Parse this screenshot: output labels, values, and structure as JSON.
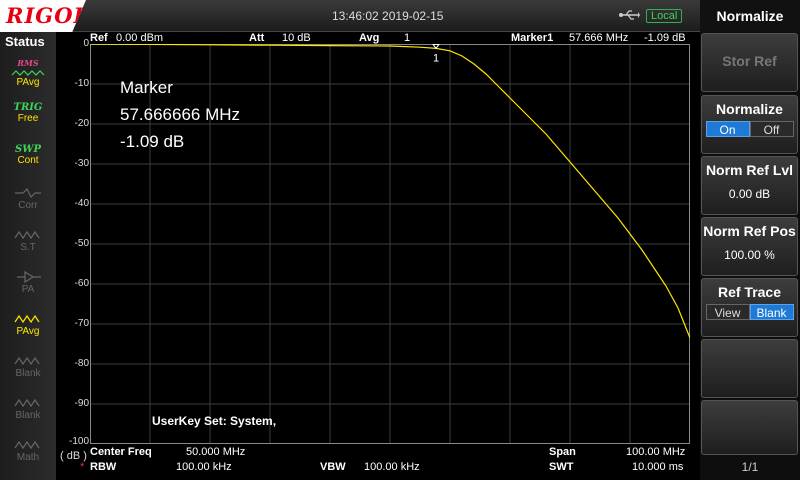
{
  "topbar": {
    "brand": "RIGOL",
    "datetime": "13:46:02 2019-02-15",
    "remote_status": "Local"
  },
  "status_panel": {
    "title": "Status",
    "items": [
      {
        "icon": "power-avg-icon",
        "top": "RMS",
        "label": "PAvg",
        "active": true
      },
      {
        "icon": "trigger-icon",
        "top": "TRIG",
        "label": "Free",
        "active": true
      },
      {
        "icon": "sweep-icon",
        "top": "SWP",
        "label": "Cont",
        "active": true
      },
      {
        "icon": "corr-icon",
        "label": "Corr",
        "active": false
      },
      {
        "icon": "st-icon",
        "label": "S.T",
        "active": false
      },
      {
        "icon": "pa-icon",
        "label": "PA",
        "active": false
      },
      {
        "icon": "trace-pavg-icon",
        "label": "PAvg",
        "active": true
      },
      {
        "icon": "trace-blank-icon",
        "label": "Blank",
        "active": false
      },
      {
        "icon": "trace-blank-icon",
        "label": "Blank",
        "active": false
      },
      {
        "icon": "trace-math-icon",
        "label": "Math",
        "active": false
      }
    ]
  },
  "plot_header": {
    "ref_label": "Ref",
    "ref_value": "0.00 dBm",
    "att_label": "Att",
    "att_value": "10 dB",
    "avg_label": "Avg",
    "avg_value": "1",
    "marker_label": "Marker1",
    "marker_freq": "57.666 MHz",
    "marker_level": "-1.09 dB"
  },
  "marker_box": {
    "title": "Marker",
    "freq": "57.666666 MHz",
    "level": "-1.09 dB"
  },
  "marker_id": "1",
  "userkey_text": "UserKey Set:   System,",
  "y_ticks": [
    "0",
    "-10",
    "-20",
    "-30",
    "-40",
    "-50",
    "-60",
    "-70",
    "-80",
    "-90",
    "-100"
  ],
  "unit": "( dB )",
  "bottom": {
    "center_label": "Center Freq",
    "center_value": "50.000 MHz",
    "span_label": "Span",
    "span_value": "100.00 MHz",
    "rbw_label": "RBW",
    "rbw_value": "100.00 kHz",
    "vbw_label": "VBW",
    "vbw_value": "100.00 kHz",
    "swt_label": "SWT",
    "swt_value": "10.000 ms"
  },
  "menu": {
    "title": "Normalize",
    "stor_ref": "Stor Ref",
    "normalize": {
      "label": "Normalize",
      "on": "On",
      "off": "Off",
      "selected": "On"
    },
    "norm_ref_lvl": {
      "label": "Norm Ref Lvl",
      "value": "0.00 dB"
    },
    "norm_ref_pos": {
      "label": "Norm Ref Pos",
      "value": "100.00 %"
    },
    "ref_trace": {
      "label": "Ref Trace",
      "view": "View",
      "blank": "Blank",
      "selected": "Blank"
    },
    "page": "1/1"
  },
  "colors": {
    "trace": "#ffe800",
    "grid": "#3c3c3c",
    "accent": "#1f7ad6",
    "brand": "#e60012"
  },
  "chart_data": {
    "type": "line",
    "xlabel": "",
    "ylabel": "",
    "xlim": [
      0,
      100
    ],
    "ylim": [
      -100,
      0
    ],
    "x_unit": "MHz",
    "y_unit": "dB",
    "grid": true,
    "series": [
      {
        "x": [
          0,
          10,
          20,
          30,
          40,
          50,
          55,
          57.67,
          60,
          62,
          64,
          66,
          68,
          70,
          72,
          74,
          76,
          78,
          80,
          82,
          84,
          86,
          88,
          90,
          92,
          94,
          96,
          98,
          100
        ],
        "values": [
          0,
          -0.1,
          -0.2,
          -0.3,
          -0.4,
          -0.5,
          -0.8,
          -1.09,
          -1.7,
          -3,
          -5,
          -7.5,
          -10.5,
          -13.5,
          -16.5,
          -19.5,
          -22.5,
          -26,
          -29.5,
          -33,
          -36.5,
          -40,
          -43.5,
          -47.5,
          -51.5,
          -56,
          -60.5,
          -66,
          -73.5
        ]
      }
    ]
  }
}
